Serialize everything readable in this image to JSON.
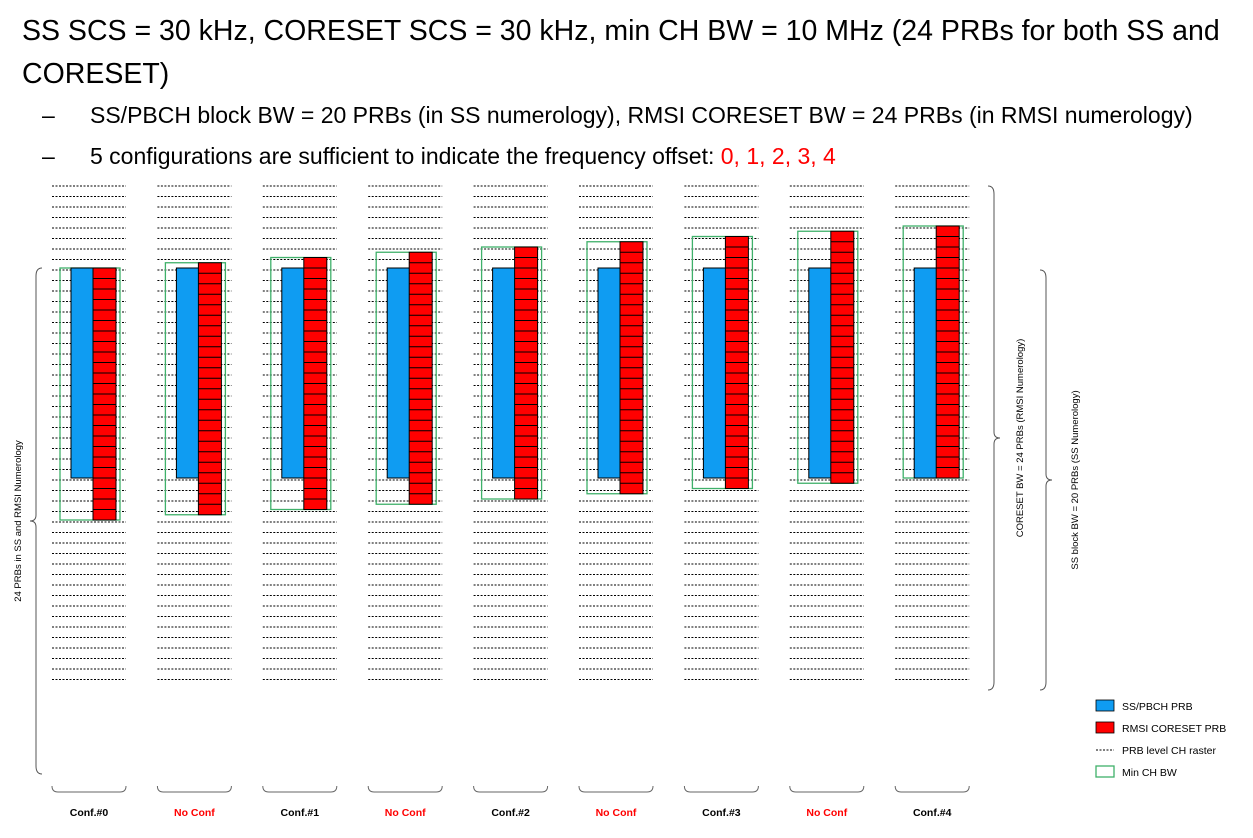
{
  "title": "SS SCS = 30 kHz, CORESET SCS = 30 kHz, min CH BW = 10 MHz (24 PRBs for both SS and CORESET)",
  "bullets": [
    {
      "marker": "–",
      "text": "SS/PBCH block BW = 20 PRBs (in SS numerology), RMSI CORESET BW = 24 PRBs (in RMSI numerology)"
    },
    {
      "marker": "–",
      "text": "5 configurations are sufficient to indicate the frequency offset: ",
      "highlight": "0, 1, 2, 3, 4"
    }
  ],
  "diagram": {
    "ss_prbs": 20,
    "coreset_prbs": 24,
    "min_ch_bw_prbs": 24,
    "raster_lines": 48,
    "columns": [
      {
        "label": "Conf.#0",
        "label_color": "#000000",
        "coreset_offset_prbs": 0
      },
      {
        "label": "No Conf",
        "label_color": "#ff0000",
        "coreset_offset_prbs": 0.5
      },
      {
        "label": "Conf.#1",
        "label_color": "#000000",
        "coreset_offset_prbs": 1
      },
      {
        "label": "No Conf",
        "label_color": "#ff0000",
        "coreset_offset_prbs": 1.5
      },
      {
        "label": "Conf.#2",
        "label_color": "#000000",
        "coreset_offset_prbs": 2
      },
      {
        "label": "No Conf",
        "label_color": "#ff0000",
        "coreset_offset_prbs": 2.5
      },
      {
        "label": "Conf.#3",
        "label_color": "#000000",
        "coreset_offset_prbs": 3
      },
      {
        "label": "No Conf",
        "label_color": "#ff0000",
        "coreset_offset_prbs": 3.5
      },
      {
        "label": "Conf.#4",
        "label_color": "#000000",
        "coreset_offset_prbs": 4
      }
    ],
    "left_brace_label": "24 PRBs in SS and RMSI Numerology",
    "right_brace_coreset_label": "CORESET BW = 24 PRBs (RMSI Numerology)",
    "right_brace_ss_label": "SS block BW = 20 PRBs (SS Numerology)"
  },
  "legend": [
    {
      "type": "box",
      "color": "#0f9cf2",
      "label": "SS/PBCH PRB"
    },
    {
      "type": "box",
      "color": "#ff0000",
      "label": "RMSI CORESET PRB"
    },
    {
      "type": "dash",
      "color": "#000000",
      "label": "PRB level CH raster"
    },
    {
      "type": "outline",
      "color": "#3fb06a",
      "label": "Min CH BW"
    }
  ],
  "colors": {
    "ss": "#0f9cf2",
    "coreset": "#ff0000",
    "min_bw": "#3fb06a",
    "highlight": "#ff0000"
  }
}
